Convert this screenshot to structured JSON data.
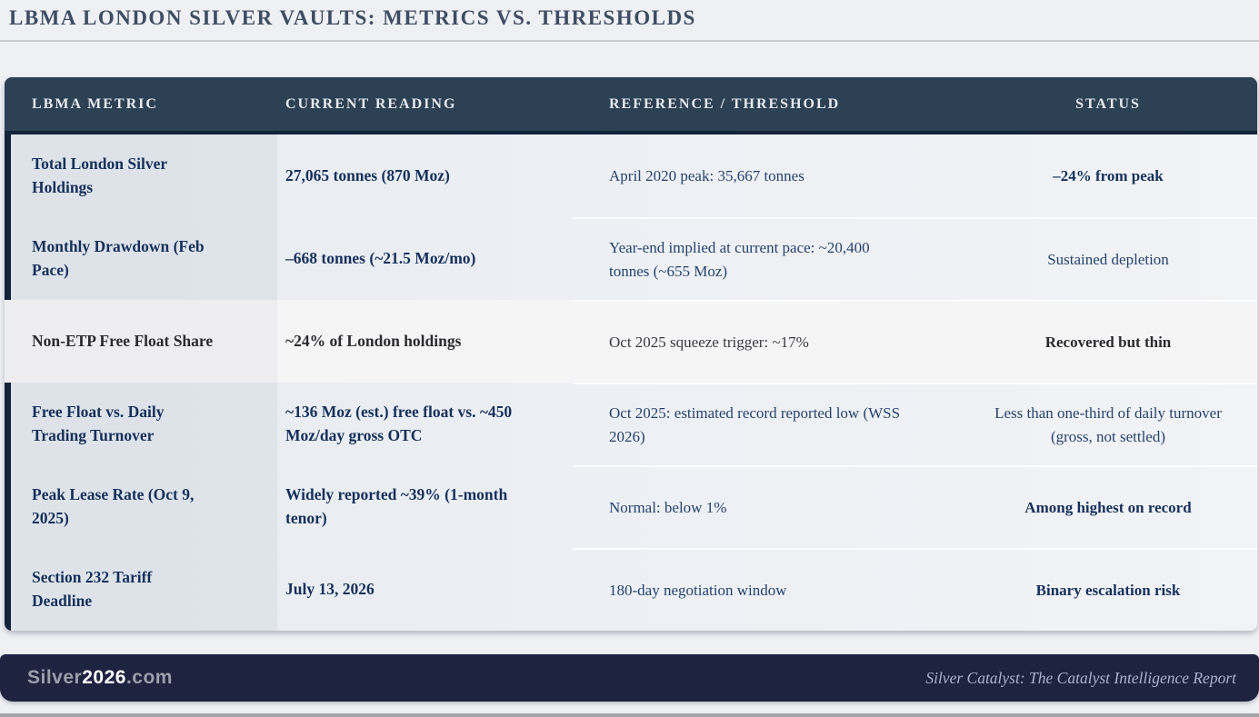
{
  "page": {
    "title": "LBMA LONDON SILVER VAULTS: METRICS VS. THRESHOLDS"
  },
  "table": {
    "columns": [
      "LBMA METRIC",
      "CURRENT READING",
      "REFERENCE / THRESHOLD",
      "STATUS"
    ],
    "rows": [
      {
        "metric": "Total London Silver Holdings",
        "current": "27,065 tonnes (870 Moz)",
        "reference": "April 2020 peak: 35,667 tonnes",
        "status": "–24% from peak",
        "status_bold": true,
        "highlighted": false
      },
      {
        "metric": "Monthly Drawdown (Feb Pace)",
        "current": "–668 tonnes (~21.5 Moz/mo)",
        "reference": "Year-end implied at current pace: ~20,400 tonnes (~655 Moz)",
        "status": "Sustained depletion",
        "status_bold": false,
        "highlighted": false
      },
      {
        "metric": "Non-ETP Free Float Share",
        "current": "~24% of London holdings",
        "reference": "Oct 2025 squeeze trigger: ~17%",
        "status": "Recovered but thin",
        "status_bold": true,
        "highlighted": true
      },
      {
        "metric": "Free Float vs. Daily Trading Turnover",
        "current": "~136 Moz (est.) free float vs. ~450 Moz/day gross OTC",
        "reference": "Oct 2025: estimated record reported low (WSS 2026)",
        "status": "Less than one-third of daily turnover (gross, not settled)",
        "status_bold": false,
        "highlighted": false
      },
      {
        "metric": "Peak Lease Rate (Oct 9, 2025)",
        "current": "Widely reported ~39% (1-month tenor)",
        "reference": "Normal: below 1%",
        "status": "Among highest on record",
        "status_bold": true,
        "highlighted": false
      },
      {
        "metric": "Section 232 Tariff Deadline",
        "current": "July 13, 2026",
        "reference": "180-day negotiation window",
        "status": "Binary escalation risk",
        "status_bold": true,
        "highlighted": false
      }
    ]
  },
  "footer": {
    "brand_prefix": "Silver",
    "brand_year": "2026",
    "brand_suffix": ".com",
    "report_title": "Silver Catalyst: The Catalyst Intelligence Report"
  },
  "colors": {
    "header_bg": "#2d4155",
    "accent_navy": "#14233c",
    "text_navy": "#16305b",
    "highlight_row_bg": "#f5f5f6",
    "footer_bg": "#1e2340",
    "page_bg": "#eef0f4"
  }
}
